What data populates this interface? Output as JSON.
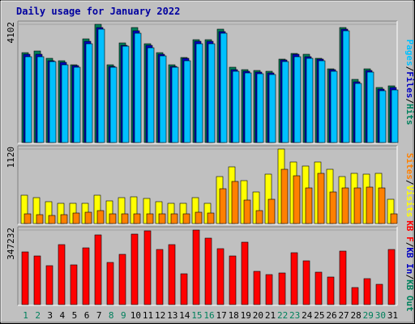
{
  "chart_data": {
    "type": "bar",
    "title": "Daily usage for January 2022",
    "days": [
      "1",
      "2",
      "3",
      "4",
      "5",
      "6",
      "7",
      "8",
      "9",
      "10",
      "11",
      "12",
      "13",
      "14",
      "15",
      "16",
      "17",
      "18",
      "19",
      "20",
      "21",
      "22",
      "23",
      "24",
      "25",
      "26",
      "27",
      "28",
      "29",
      "30",
      "31"
    ],
    "weekend_days": [
      "1",
      "2",
      "8",
      "9",
      "15",
      "16",
      "22",
      "23",
      "29",
      "30"
    ],
    "colors": {
      "hits": "#00805c",
      "files": "#0000c0",
      "pages": "#00c0ff",
      "visits": "#ffff00",
      "sites": "#ff8000",
      "kbin": "#ff0000",
      "title": "#0000a0",
      "weekend": "#00805c",
      "weekday": "#000000"
    },
    "panels": [
      {
        "id": "top",
        "max_label": "4102",
        "max": 4102,
        "series": [
          {
            "name": "Hits",
            "key": "hits",
            "values": [
              3120,
              3170,
              2920,
              2850,
              2700,
              3600,
              4102,
              2700,
              3450,
              3980,
              3420,
              3130,
              2700,
              2960,
              3560,
              3560,
              3930,
              2600,
              2530,
              2500,
              2460,
              2900,
              3100,
              3050,
              2930,
              2560,
              3990,
              2180,
              2570,
              1920,
              1960
            ]
          },
          {
            "name": "Files",
            "key": "files",
            "values": [
              3060,
              3060,
              2840,
              2780,
              2660,
              3520,
              4000,
              2650,
              3380,
              3880,
              3360,
              3070,
              2650,
              2910,
              3500,
              3500,
              3860,
              2540,
              2480,
              2450,
              2410,
              2860,
              3050,
              2980,
              2890,
              2520,
              3930,
              2120,
              2510,
              1860,
              1910
            ]
          },
          {
            "name": "Pages",
            "key": "pages",
            "values": [
              2980,
              2980,
              2800,
              2700,
              2620,
              3440,
              3920,
              2620,
              3330,
              3800,
              3300,
              3000,
              2620,
              2840,
              3430,
              3440,
              3790,
              2480,
              2420,
              2400,
              2350,
              2810,
              2990,
              2920,
              2840,
              2460,
              3880,
              2060,
              2440,
              1800,
              1840
            ]
          }
        ],
        "axis_label": [
          {
            "text": "Pages",
            "key": "pages"
          },
          {
            "text": "/",
            "key": "weekday"
          },
          {
            "text": "Files",
            "key": "files"
          },
          {
            "text": "/",
            "key": "weekday"
          },
          {
            "text": "Hits",
            "key": "hits"
          }
        ]
      },
      {
        "id": "middle",
        "max_label": "1120",
        "max": 1120,
        "series": [
          {
            "name": "Visits",
            "key": "visits",
            "values": [
              430,
              390,
              330,
              310,
              310,
              310,
              430,
              340,
              390,
              400,
              380,
              330,
              310,
              300,
              390,
              300,
              700,
              850,
              650,
              480,
              740,
              1120,
              920,
              860,
              920,
              820,
              700,
              760,
              740,
              750,
              360
            ]
          },
          {
            "name": "Sites",
            "key": "sites",
            "values": [
              150,
              130,
              120,
              130,
              160,
              170,
              200,
              140,
              140,
              150,
              150,
              150,
              140,
              150,
              170,
              160,
              520,
              630,
              350,
              190,
              370,
              820,
              720,
              530,
              750,
              480,
              530,
              540,
              550,
              540,
              140
            ]
          }
        ],
        "axis_label": [
          {
            "text": "Sites",
            "key": "sites"
          },
          {
            "text": "/",
            "key": "weekday"
          },
          {
            "text": "Visits",
            "key": "visits"
          }
        ]
      },
      {
        "id": "bottom",
        "max_label": "347232",
        "max": 347232,
        "series": [
          {
            "name": "KB F",
            "key": "kbin",
            "values": [
              244000,
              228000,
              180000,
              280000,
              185000,
              265000,
              325000,
              195000,
              235000,
              330000,
              342000,
              255000,
              278000,
              145000,
              347232,
              310000,
              262000,
              225000,
              290000,
              155000,
              138000,
              148000,
              240000,
              205000,
              150000,
              128000,
              250000,
              80000,
              120000,
              95000,
              258000
            ]
          }
        ],
        "axis_label": [
          {
            "text": "KB F",
            "key": "kbin"
          },
          {
            "text": "/",
            "key": "weekday"
          },
          {
            "text": "KB In",
            "key": "files"
          },
          {
            "text": "/",
            "key": "weekday"
          },
          {
            "text": "KB Out",
            "key": "hits"
          }
        ]
      }
    ]
  }
}
